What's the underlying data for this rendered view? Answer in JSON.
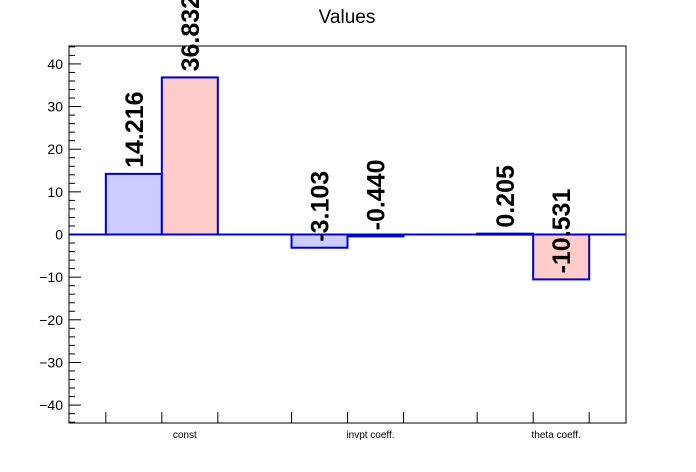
{
  "chart_data": {
    "type": "bar",
    "title": "Values",
    "xlabel": "",
    "ylabel": "",
    "categories": [
      "const",
      "invpt coeff.",
      "theta coeff."
    ],
    "series": [
      {
        "values": [
          14.216,
          -3.103,
          0.205
        ],
        "labels": [
          "14.216",
          "-3.103",
          "0.205"
        ]
      },
      {
        "values": [
          36.832,
          -0.44,
          -10.531
        ],
        "labels": [
          "36.832",
          "-0.440",
          "-10.531"
        ]
      }
    ],
    "ylim": [
      -44.2,
      44.2
    ],
    "yticks": [
      -40,
      -30,
      -20,
      -10,
      0,
      10,
      20,
      30,
      40
    ],
    "yticklabels": [
      "−40",
      "−30",
      "−20",
      "−10",
      "0",
      "10",
      "20",
      "30",
      "40"
    ],
    "colors": {
      "series_fill": [
        "#ccccff",
        "#ffcccc"
      ],
      "bar_stroke": "#0000cc",
      "zero_line": "#0000cc"
    },
    "grid": false,
    "legend": "none"
  }
}
